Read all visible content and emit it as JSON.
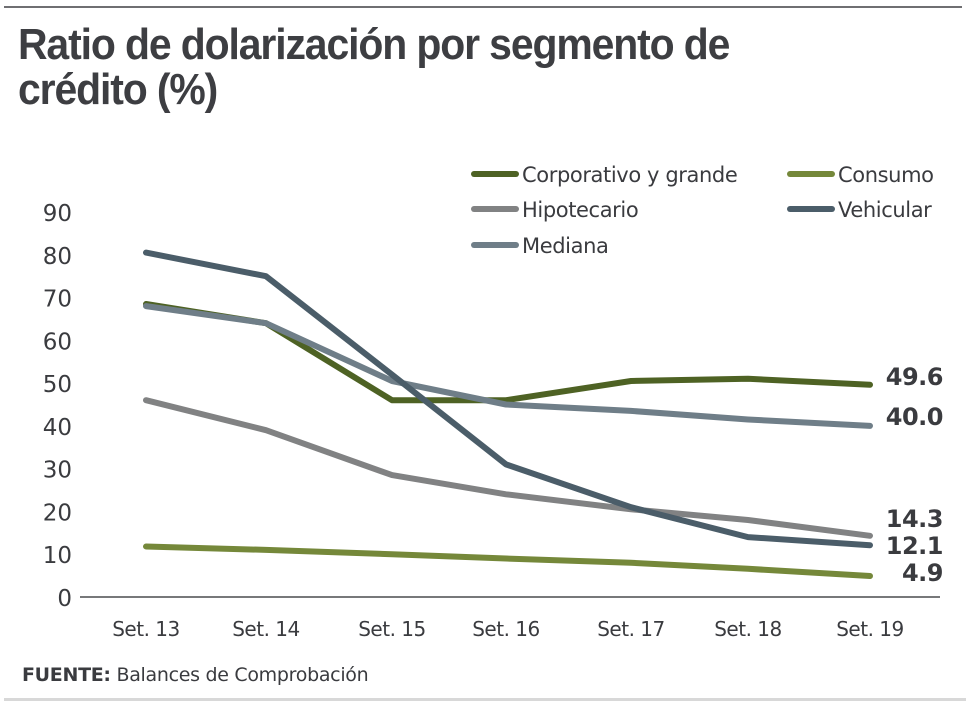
{
  "title": "Ratio de dolarización por segmento de crédito (%)",
  "source_label": "FUENTE:",
  "source_text": "Balances de Comprobación",
  "chart_data": {
    "type": "line",
    "title": "Ratio de dolarización por segmento de crédito (%)",
    "xlabel": "",
    "ylabel": "",
    "categories": [
      "Set. 13",
      "Set. 14",
      "Set. 15",
      "Set. 16",
      "Set. 17",
      "Set. 18",
      "Set. 19"
    ],
    "yticks": [
      0,
      10,
      20,
      30,
      40,
      50,
      60,
      70,
      80,
      90
    ],
    "ylim": [
      0,
      90
    ],
    "grid": false,
    "legend_position": "top-right",
    "series": [
      {
        "name": "Corporativo y grande",
        "color": "#4e6224",
        "values": [
          68.5,
          64,
          46,
          46,
          50.5,
          51,
          49.6
        ],
        "end_label": "49.6"
      },
      {
        "name": "Consumo",
        "color": "#75883a",
        "values": [
          11.8,
          11,
          10,
          9,
          8,
          6.6,
          4.9
        ],
        "end_label": "4.9"
      },
      {
        "name": "Hipotecario",
        "color": "#818283",
        "values": [
          46,
          39,
          28.5,
          24,
          20.5,
          18,
          14.3
        ],
        "end_label": "14.3"
      },
      {
        "name": "Vehicular",
        "color": "#4b5d69",
        "values": [
          80.5,
          75,
          52,
          31,
          21,
          14,
          12.1
        ],
        "end_label": "12.1"
      },
      {
        "name": "Mediana",
        "color": "#6f7e88",
        "values": [
          68,
          64,
          50.5,
          45,
          43.5,
          41.5,
          40.0
        ],
        "end_label": "40.0"
      }
    ]
  }
}
